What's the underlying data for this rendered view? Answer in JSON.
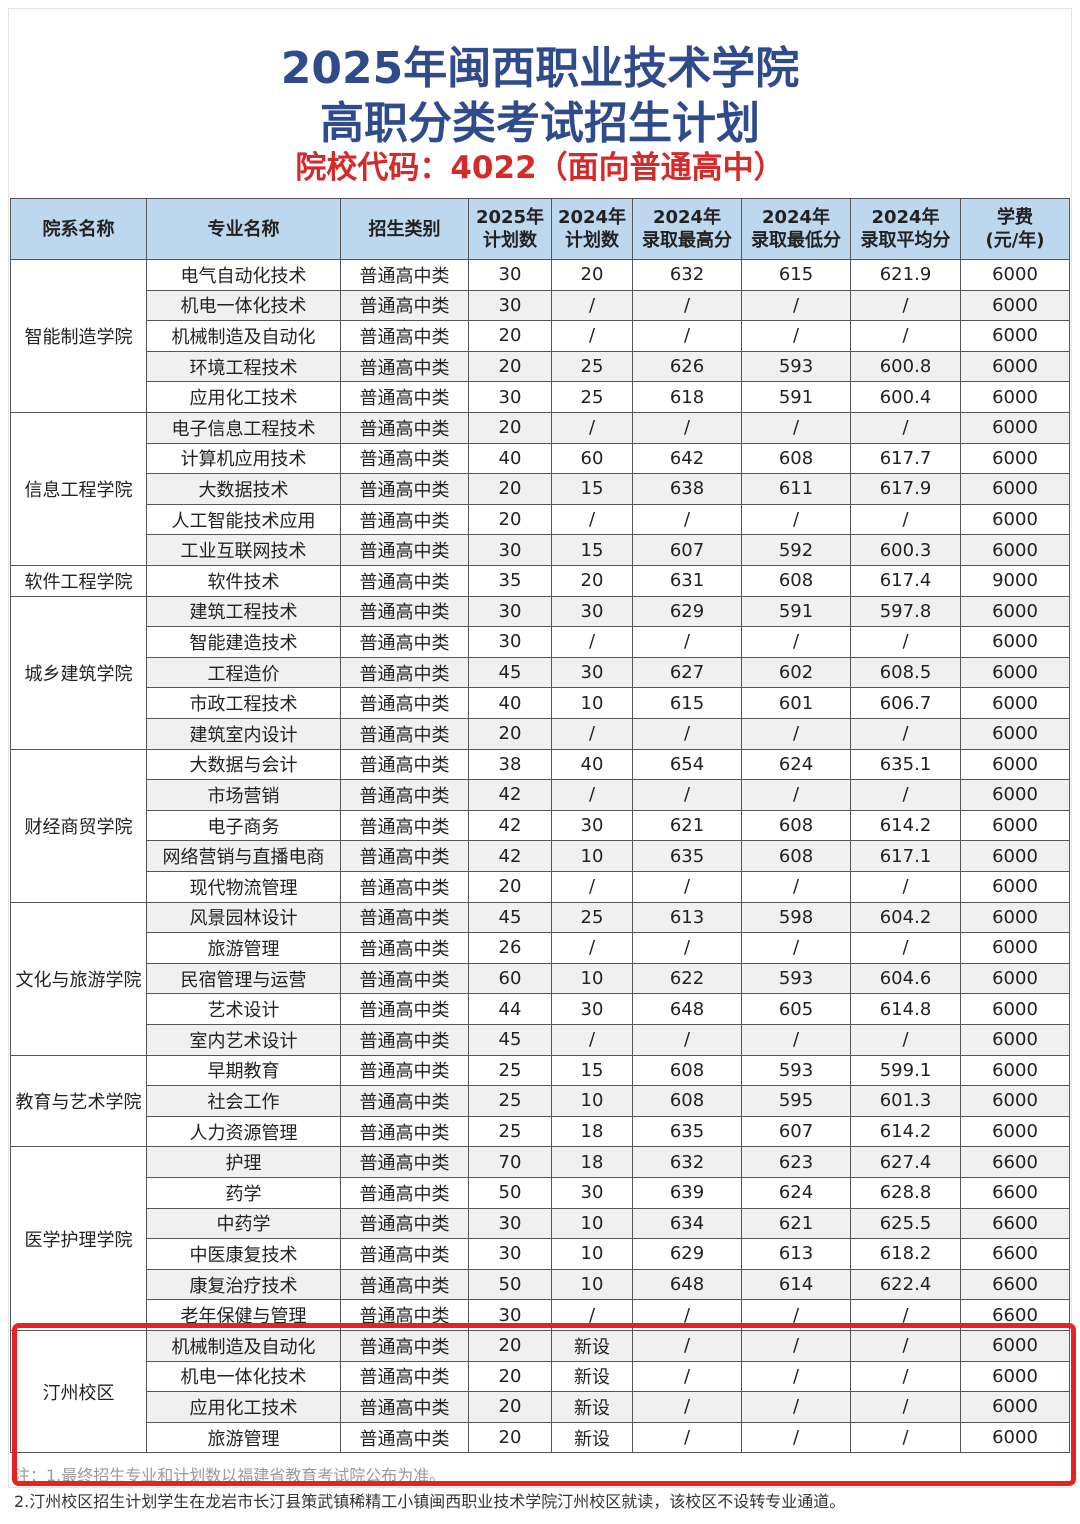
{
  "header": {
    "title_line1": "2025年闽西职业技术学院",
    "title_line2": "高职分类考试招生计划",
    "code_line": "院校代码：4022（面向普通高中）"
  },
  "table": {
    "columns": [
      [
        "院系名称"
      ],
      [
        "专业名称"
      ],
      [
        "招生类别"
      ],
      [
        "2025年",
        "计划数"
      ],
      [
        "2024年",
        "计划数"
      ],
      [
        "2024年",
        "录取最高分"
      ],
      [
        "2024年",
        "录取最低分"
      ],
      [
        "2024年",
        "录取平均分"
      ],
      [
        "学费",
        "(元/年)"
      ]
    ],
    "groups": [
      {
        "dept": "智能制造学院",
        "rows": [
          [
            "电气自动化技术",
            "普通高中类",
            "30",
            "20",
            "632",
            "615",
            "621.9",
            "6000"
          ],
          [
            "机电一体化技术",
            "普通高中类",
            "30",
            "/",
            "/",
            "/",
            "/",
            "6000"
          ],
          [
            "机械制造及自动化",
            "普通高中类",
            "20",
            "/",
            "/",
            "/",
            "/",
            "6000"
          ],
          [
            "环境工程技术",
            "普通高中类",
            "20",
            "25",
            "626",
            "593",
            "600.8",
            "6000"
          ],
          [
            "应用化工技术",
            "普通高中类",
            "30",
            "25",
            "618",
            "591",
            "600.4",
            "6000"
          ]
        ]
      },
      {
        "dept": "信息工程学院",
        "rows": [
          [
            "电子信息工程技术",
            "普通高中类",
            "20",
            "/",
            "/",
            "/",
            "/",
            "6000"
          ],
          [
            "计算机应用技术",
            "普通高中类",
            "40",
            "60",
            "642",
            "608",
            "617.7",
            "6000"
          ],
          [
            "大数据技术",
            "普通高中类",
            "20",
            "15",
            "638",
            "611",
            "617.9",
            "6000"
          ],
          [
            "人工智能技术应用",
            "普通高中类",
            "20",
            "/",
            "/",
            "/",
            "/",
            "6000"
          ],
          [
            "工业互联网技术",
            "普通高中类",
            "30",
            "15",
            "607",
            "592",
            "600.3",
            "6000"
          ]
        ]
      },
      {
        "dept": "软件工程学院",
        "rows": [
          [
            "软件技术",
            "普通高中类",
            "35",
            "20",
            "631",
            "608",
            "617.4",
            "9000"
          ]
        ]
      },
      {
        "dept": "城乡建筑学院",
        "rows": [
          [
            "建筑工程技术",
            "普通高中类",
            "30",
            "30",
            "629",
            "591",
            "597.8",
            "6000"
          ],
          [
            "智能建造技术",
            "普通高中类",
            "30",
            "/",
            "/",
            "/",
            "/",
            "6000"
          ],
          [
            "工程造价",
            "普通高中类",
            "45",
            "30",
            "627",
            "602",
            "608.5",
            "6000"
          ],
          [
            "市政工程技术",
            "普通高中类",
            "40",
            "10",
            "615",
            "601",
            "606.7",
            "6000"
          ],
          [
            "建筑室内设计",
            "普通高中类",
            "20",
            "/",
            "/",
            "/",
            "/",
            "6000"
          ]
        ]
      },
      {
        "dept": "财经商贸学院",
        "rows": [
          [
            "大数据与会计",
            "普通高中类",
            "38",
            "40",
            "654",
            "624",
            "635.1",
            "6000"
          ],
          [
            "市场营销",
            "普通高中类",
            "42",
            "/",
            "/",
            "/",
            "/",
            "6000"
          ],
          [
            "电子商务",
            "普通高中类",
            "42",
            "30",
            "621",
            "608",
            "614.2",
            "6000"
          ],
          [
            "网络营销与直播电商",
            "普通高中类",
            "42",
            "10",
            "635",
            "608",
            "617.1",
            "6000"
          ],
          [
            "现代物流管理",
            "普通高中类",
            "20",
            "/",
            "/",
            "/",
            "/",
            "6000"
          ]
        ]
      },
      {
        "dept": "文化与旅游学院",
        "rows": [
          [
            "风景园林设计",
            "普通高中类",
            "45",
            "25",
            "613",
            "598",
            "604.2",
            "6000"
          ],
          [
            "旅游管理",
            "普通高中类",
            "26",
            "/",
            "/",
            "/",
            "/",
            "6000"
          ],
          [
            "民宿管理与运营",
            "普通高中类",
            "60",
            "10",
            "622",
            "593",
            "604.6",
            "6000"
          ],
          [
            "艺术设计",
            "普通高中类",
            "44",
            "30",
            "648",
            "605",
            "614.8",
            "6000"
          ],
          [
            "室内艺术设计",
            "普通高中类",
            "45",
            "/",
            "/",
            "/",
            "/",
            "6000"
          ]
        ]
      },
      {
        "dept": "教育与艺术学院",
        "rows": [
          [
            "早期教育",
            "普通高中类",
            "25",
            "15",
            "608",
            "593",
            "599.1",
            "6000"
          ],
          [
            "社会工作",
            "普通高中类",
            "25",
            "10",
            "608",
            "595",
            "601.3",
            "6000"
          ],
          [
            "人力资源管理",
            "普通高中类",
            "25",
            "18",
            "635",
            "607",
            "614.2",
            "6000"
          ]
        ]
      },
      {
        "dept": "医学护理学院",
        "rows": [
          [
            "护理",
            "普通高中类",
            "70",
            "18",
            "632",
            "623",
            "627.4",
            "6600"
          ],
          [
            "药学",
            "普通高中类",
            "50",
            "30",
            "639",
            "624",
            "628.8",
            "6600"
          ],
          [
            "中药学",
            "普通高中类",
            "30",
            "10",
            "634",
            "621",
            "625.5",
            "6600"
          ],
          [
            "中医康复技术",
            "普通高中类",
            "30",
            "10",
            "629",
            "613",
            "618.2",
            "6600"
          ],
          [
            "康复治疗技术",
            "普通高中类",
            "50",
            "10",
            "648",
            "614",
            "622.4",
            "6600"
          ],
          [
            "老年保健与管理",
            "普通高中类",
            "30",
            "/",
            "/",
            "/",
            "/",
            "6600"
          ]
        ]
      },
      {
        "dept": "汀州校区",
        "rows": [
          [
            "机械制造及自动化",
            "普通高中类",
            "20",
            "新设",
            "/",
            "/",
            "/",
            "6000"
          ],
          [
            "机电一体化技术",
            "普通高中类",
            "20",
            "新设",
            "/",
            "/",
            "/",
            "6000"
          ],
          [
            "应用化工技术",
            "普通高中类",
            "20",
            "新设",
            "/",
            "/",
            "/",
            "6000"
          ],
          [
            "旅游管理",
            "普通高中类",
            "20",
            "新设",
            "/",
            "/",
            "/",
            "6000"
          ]
        ]
      }
    ]
  },
  "notes": [
    "注：1.最终招生专业和计划数以福建省教育考试院公布为准。",
    "2.汀州校区招生计划学生在龙岩市长汀县策武镇稀精工小镇闽西职业技术学院汀州校区就读，该校区不设转专业通道。"
  ]
}
